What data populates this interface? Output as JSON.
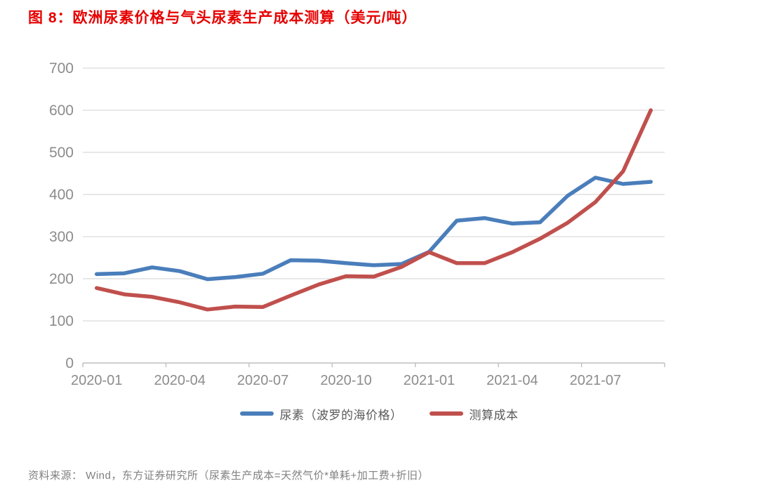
{
  "title": "图 8：欧洲尿素价格与气头尿素生产成本测算（美元/吨）",
  "source_note": "资料来源： Wind，东方证券研究所（尿素生产成本=天然气价*单耗+加工费+折旧）",
  "colors": {
    "title": "#e60000",
    "grid": "#d9d9d9",
    "axis": "#bfbfbf",
    "tick_label": "#8c8c8c",
    "legend_label": "#595959",
    "source_text": "#808080",
    "series_blue": "#4a7ebb",
    "series_red": "#c0504d"
  },
  "chart_data": {
    "type": "line",
    "title": "欧洲尿素价格与气头尿素生产成本测算（美元/吨）",
    "unit": "美元/吨",
    "xlabel": "",
    "ylabel": "",
    "ylim": [
      0,
      700
    ],
    "y_tick_step": 100,
    "x_tick_step": 3,
    "grid": "horizontal",
    "legend_position": "bottom",
    "categories": [
      "2020-01",
      "2020-02",
      "2020-03",
      "2020-04",
      "2020-05",
      "2020-06",
      "2020-07",
      "2020-08",
      "2020-09",
      "2020-10",
      "2020-11",
      "2020-12",
      "2021-01",
      "2021-02",
      "2021-03",
      "2021-04",
      "2021-05",
      "2021-06",
      "2021-07",
      "2021-08",
      "2021-09"
    ],
    "x_tick_labels": [
      "2020-01",
      "2020-04",
      "2020-07",
      "2020-10",
      "2021-01",
      "2021-04",
      "2021-07"
    ],
    "series": [
      {
        "id": "urea-baltic-price",
        "name": "尿素（波罗的海价格）",
        "color": "#4a7ebb",
        "values": [
          211,
          213,
          227,
          218,
          199,
          204,
          212,
          244,
          243,
          237,
          232,
          235,
          264,
          338,
          344,
          331,
          334,
          397,
          440,
          425,
          430
        ]
      },
      {
        "id": "estimated-cost",
        "name": "测算成本",
        "color": "#c0504d",
        "values": [
          178,
          163,
          157,
          144,
          127,
          134,
          133,
          160,
          186,
          206,
          205,
          228,
          263,
          237,
          237,
          263,
          295,
          333,
          382,
          455,
          600
        ]
      }
    ]
  }
}
